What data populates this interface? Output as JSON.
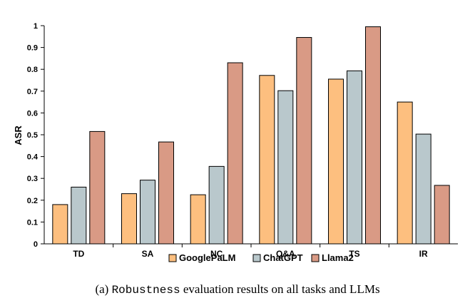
{
  "chart_data": {
    "type": "bar",
    "ylabel": "ASR",
    "ylim": [
      0,
      1
    ],
    "yticks": [
      "0",
      "0.1",
      "0.2",
      "0.3",
      "0.4",
      "0.5",
      "0.6",
      "0.7",
      "0.8",
      "0.9",
      "1"
    ],
    "categories": [
      "TD",
      "SA",
      "NC",
      "Q&A",
      "TS",
      "IR"
    ],
    "series": [
      {
        "name": "GooglePaLM",
        "color": "#FDBF7F",
        "values": [
          0.18,
          0.23,
          0.225,
          0.772,
          0.755,
          0.65
        ]
      },
      {
        "name": "ChatGPT",
        "color": "#B9C8CC",
        "values": [
          0.26,
          0.292,
          0.355,
          0.702,
          0.793,
          0.503
        ]
      },
      {
        "name": "Llama2",
        "color": "#D99A85",
        "values": [
          0.515,
          0.467,
          0.83,
          0.946,
          0.995,
          0.268
        ]
      }
    ],
    "legend_position": "bottom",
    "grid": false
  },
  "caption": {
    "prefix": "(a) ",
    "keyword": "Robustness",
    "suffix": " evaluation results on all tasks and LLMs"
  }
}
